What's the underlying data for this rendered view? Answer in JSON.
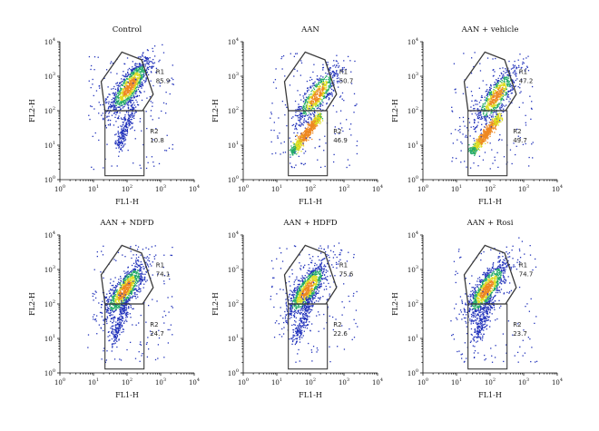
{
  "chart_data": [
    {
      "type": "scatter",
      "title": "Control",
      "xlabel": "FL1-H",
      "ylabel": "FL2-H",
      "xscale": "log",
      "yscale": "log",
      "xlim": [
        1,
        10000
      ],
      "ylim": [
        1,
        10000
      ],
      "xticks": [
        "10^0",
        "10^1",
        "10^2",
        "10^3",
        "10^4"
      ],
      "yticks": [
        "10^0",
        "10^1",
        "10^2",
        "10^3",
        "10^4"
      ],
      "gates": [
        {
          "name": "R1",
          "value": "85.9"
        },
        {
          "name": "R2",
          "value": "10.8"
        }
      ],
      "population": {
        "main_center": [
          120,
          500
        ],
        "streak": false
      }
    },
    {
      "type": "scatter",
      "title": "AAN",
      "xlabel": "FL1-H",
      "ylabel": "FL2-H",
      "xscale": "log",
      "yscale": "log",
      "xlim": [
        1,
        10000
      ],
      "ylim": [
        1,
        10000
      ],
      "xticks": [
        "10^0",
        "10^1",
        "10^2",
        "10^3",
        "10^4"
      ],
      "yticks": [
        "10^0",
        "10^1",
        "10^2",
        "10^3",
        "10^4"
      ],
      "gates": [
        {
          "name": "R1",
          "value": "50.7"
        },
        {
          "name": "R2",
          "value": "46.9"
        }
      ],
      "population": {
        "main_center": [
          160,
          280
        ],
        "streak": true
      }
    },
    {
      "type": "scatter",
      "title": "AAN + vehicle",
      "xlabel": "FL1-H",
      "ylabel": "FL2-H",
      "xscale": "log",
      "yscale": "log",
      "xlim": [
        1,
        10000
      ],
      "ylim": [
        1,
        10000
      ],
      "xticks": [
        "10^0",
        "10^1",
        "10^2",
        "10^3",
        "10^4"
      ],
      "yticks": [
        "10^0",
        "10^1",
        "10^2",
        "10^3",
        "10^4"
      ],
      "gates": [
        {
          "name": "R1",
          "value": "47.2"
        },
        {
          "name": "R2",
          "value": "49.7"
        }
      ],
      "population": {
        "main_center": [
          150,
          260
        ],
        "streak": true
      }
    },
    {
      "type": "scatter",
      "title": "AAN + NDFD",
      "xlabel": "FL1-H",
      "ylabel": "FL2-H",
      "xscale": "log",
      "yscale": "log",
      "xlim": [
        1,
        10000
      ],
      "ylim": [
        1,
        10000
      ],
      "xticks": [
        "10^0",
        "10^1",
        "10^2",
        "10^3",
        "10^4"
      ],
      "yticks": [
        "10^0",
        "10^1",
        "10^2",
        "10^3",
        "10^4"
      ],
      "gates": [
        {
          "name": "R1",
          "value": "74.1"
        },
        {
          "name": "R2",
          "value": "24.7"
        }
      ],
      "population": {
        "main_center": [
          85,
          250
        ],
        "streak": false
      }
    },
    {
      "type": "scatter",
      "title": "AAN + HDFD",
      "xlabel": "FL1-H",
      "ylabel": "FL2-H",
      "xscale": "log",
      "yscale": "log",
      "xlim": [
        1,
        10000
      ],
      "ylim": [
        1,
        10000
      ],
      "xticks": [
        "10^0",
        "10^1",
        "10^2",
        "10^3",
        "10^4"
      ],
      "yticks": [
        "10^0",
        "10^1",
        "10^2",
        "10^3",
        "10^4"
      ],
      "gates": [
        {
          "name": "R1",
          "value": "75.6"
        },
        {
          "name": "R2",
          "value": "22.6"
        }
      ],
      "population": {
        "main_center": [
          80,
          260
        ],
        "streak": false
      }
    },
    {
      "type": "scatter",
      "title": "AAN + Rosi",
      "xlabel": "FL1-H",
      "ylabel": "FL2-H",
      "xscale": "log",
      "yscale": "log",
      "xlim": [
        1,
        10000
      ],
      "ylim": [
        1,
        10000
      ],
      "xticks": [
        "10^0",
        "10^1",
        "10^2",
        "10^3",
        "10^4"
      ],
      "yticks": [
        "10^0",
        "10^1",
        "10^2",
        "10^3",
        "10^4"
      ],
      "gates": [
        {
          "name": "R1",
          "value": "74.7"
        },
        {
          "name": "R2",
          "value": "23.7"
        }
      ],
      "population": {
        "main_center": [
          80,
          270
        ],
        "streak": false
      }
    }
  ],
  "colors": {
    "density_low": "#2233bb",
    "density_mid": "#22aa66",
    "density_high_1": "#dddd22",
    "density_high_2": "#ee8822",
    "gate": "#3a3a3a"
  }
}
